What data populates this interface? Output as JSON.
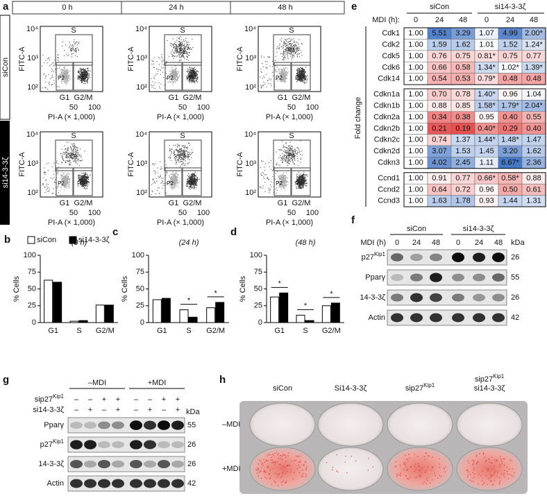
{
  "panel_a": {
    "letter": "a",
    "columns": [
      "0 h",
      "24 h",
      "48 h"
    ],
    "rows": [
      "siCon",
      "si14-3-3ζ"
    ],
    "x_label": "PI-A (× 1,000)",
    "y_label": "FITC-A",
    "x_ticks": [
      "50",
      "100"
    ],
    "y_ticks": [
      "10⁴",
      "10³",
      "10²"
    ],
    "gate_labels": {
      "s": "S",
      "p4": "P4",
      "p2": "P2",
      "p3": "P3"
    },
    "phase_labels": [
      "G1",
      "G2/M"
    ]
  },
  "bar_charts": {
    "legend": [
      "siCon",
      "si14-3-3ζ"
    ],
    "series_colors": [
      "#ffffff",
      "#000000"
    ],
    "y_label": "% Cells",
    "ylim": [
      0,
      100
    ],
    "yticks": [
      0,
      25,
      50,
      75,
      100
    ],
    "categories": [
      "G1",
      "S",
      "G2/M"
    ],
    "charts": [
      {
        "letter": "b",
        "subtitle": "(0 h)",
        "series": [
          {
            "values": [
              63,
              2,
              26
            ]
          },
          {
            "values": [
              60,
              3,
              26
            ]
          }
        ],
        "annotations": []
      },
      {
        "letter": "c",
        "subtitle": "(24 h)",
        "series": [
          {
            "values": [
              34,
              19,
              22
            ]
          },
          {
            "values": [
              36,
              8,
              30
            ]
          }
        ],
        "annotations": [
          {
            "at": "S",
            "text": "*"
          },
          {
            "at": "G2/M",
            "text": "*"
          }
        ]
      },
      {
        "letter": "d",
        "subtitle": "(48 h)",
        "series": [
          {
            "values": [
              38,
              11,
              25
            ]
          },
          {
            "values": [
              44,
              3,
              29
            ]
          }
        ],
        "annotations": [
          {
            "at": "G1",
            "text": "*"
          },
          {
            "at": "S",
            "text": "*"
          },
          {
            "at": "G2/M",
            "text": "*"
          }
        ]
      }
    ]
  },
  "panel_e": {
    "letter": "e",
    "groups": [
      "siCon",
      "si14-3-3ζ"
    ],
    "header_label": "MDI (h):",
    "time_points": [
      "0",
      "24",
      "48",
      "0",
      "24",
      "48"
    ],
    "y_label": "Fold change",
    "blocks": [
      [
        {
          "gene": "Cdk1",
          "values": [
            "1.00",
            "5.51",
            "3.29",
            "1.07",
            "4.99",
            "2.00*"
          ]
        },
        {
          "gene": "Cdk2",
          "values": [
            "1.00",
            "1.59",
            "1.62",
            "1.01",
            "1.52",
            "1.24*"
          ]
        },
        {
          "gene": "Cdk5",
          "values": [
            "1.00",
            "0.76",
            "0.75",
            "0.81*",
            "0.75",
            "0.77"
          ]
        },
        {
          "gene": "Cdk6",
          "values": [
            "1.00",
            "0.66",
            "0.58",
            "1.34*",
            "1.02*",
            "1.39*"
          ]
        },
        {
          "gene": "Cdk14",
          "values": [
            "1.00",
            "0.54",
            "0.53",
            "0.79*",
            "0.48",
            "0.48"
          ]
        }
      ],
      [
        {
          "gene": "Cdkn1a",
          "values": [
            "1.00",
            "0.70",
            "0.78",
            "1.40*",
            "0.96",
            "1.04"
          ]
        },
        {
          "gene": "Cdkn1b",
          "values": [
            "1.00",
            "0.88",
            "0.85",
            "1.58*",
            "1.79*",
            "2.04*"
          ]
        },
        {
          "gene": "Cdkn2a",
          "values": [
            "1.00",
            "0.34",
            "0.38",
            "0.95",
            "0.40",
            "0.55"
          ]
        },
        {
          "gene": "Cdkn2b",
          "values": [
            "1.00",
            "0.21",
            "0.19",
            "0.40*",
            "0.29",
            "0.40"
          ]
        },
        {
          "gene": "Cdkn2c",
          "values": [
            "1.00",
            "0.74",
            "1.37",
            "1.44*",
            "1.48*",
            "1.47"
          ]
        },
        {
          "gene": "Cdkn2d",
          "values": [
            "1.00",
            "3.07",
            "1.53",
            "1.45",
            "3.20",
            "1.62"
          ]
        },
        {
          "gene": "Cdkn3",
          "values": [
            "1.00",
            "4.02",
            "2.45",
            "1.11",
            "6.67*",
            "2.36"
          ]
        }
      ],
      [
        {
          "gene": "Ccnd1",
          "values": [
            "1.00",
            "0.91",
            "0.77",
            "0.66*",
            "0.58*",
            "0.88"
          ]
        },
        {
          "gene": "Ccnd2",
          "values": [
            "1.00",
            "0.64",
            "0.72",
            "0.96",
            "0.50",
            "0.61"
          ]
        },
        {
          "gene": "Ccnd3",
          "values": [
            "1.00",
            "1.63",
            "1.78",
            "0.93",
            "1.44",
            "1.31"
          ]
        }
      ]
    ]
  },
  "panel_f": {
    "letter": "f",
    "groups": [
      "siCon",
      "si14-3-3ζ"
    ],
    "lane_label": "MDI (h)",
    "lanes": [
      "0",
      "24",
      "48",
      "0",
      "24",
      "48"
    ],
    "kda_label": "kDa",
    "rows": [
      {
        "label": {
          "base": "p27",
          "sup": "Kip1"
        },
        "kda": "26"
      },
      {
        "label": {
          "base": "Pparγ"
        },
        "kda": "55"
      },
      {
        "label": {
          "base": "14-3-3ζ"
        },
        "kda": "26"
      },
      {
        "label": {
          "base": "Actin"
        },
        "kda": "42"
      }
    ]
  },
  "panel_g": {
    "letter": "g",
    "groups": [
      "–MDI",
      "+MDI"
    ],
    "conditions": [
      {
        "label": {
          "base": "sip27",
          "sup": "Kip1"
        },
        "signs": [
          "–",
          "–",
          "+",
          "+",
          "–",
          "–",
          "+",
          "+"
        ]
      },
      {
        "label": {
          "base": "si14-3-3ζ"
        },
        "signs": [
          "–",
          "+",
          "–",
          "+",
          "–",
          "+",
          "–",
          "+"
        ]
      }
    ],
    "kda_label": "kDa",
    "rows": [
      {
        "label": {
          "base": "Pparγ"
        },
        "kda": "55"
      },
      {
        "label": {
          "base": "p27",
          "sup": "Kip1"
        },
        "kda": "26"
      },
      {
        "label": {
          "base": "14-3-3ζ"
        },
        "kda": "26"
      },
      {
        "label": {
          "base": "Actin"
        },
        "kda": "42"
      }
    ]
  },
  "panel_h": {
    "letter": "h",
    "columns": [
      [
        {
          "base": "siCon"
        }
      ],
      [
        {
          "base": "Si14-3-3ζ"
        }
      ],
      [
        {
          "base": "sip27",
          "sup": "Kip1"
        }
      ],
      [
        {
          "base": "sip27",
          "sup": "Kip1"
        },
        {
          "base": "si14-3-3ζ"
        }
      ]
    ],
    "rows": [
      "–MDI",
      "+MDI"
    ]
  }
}
